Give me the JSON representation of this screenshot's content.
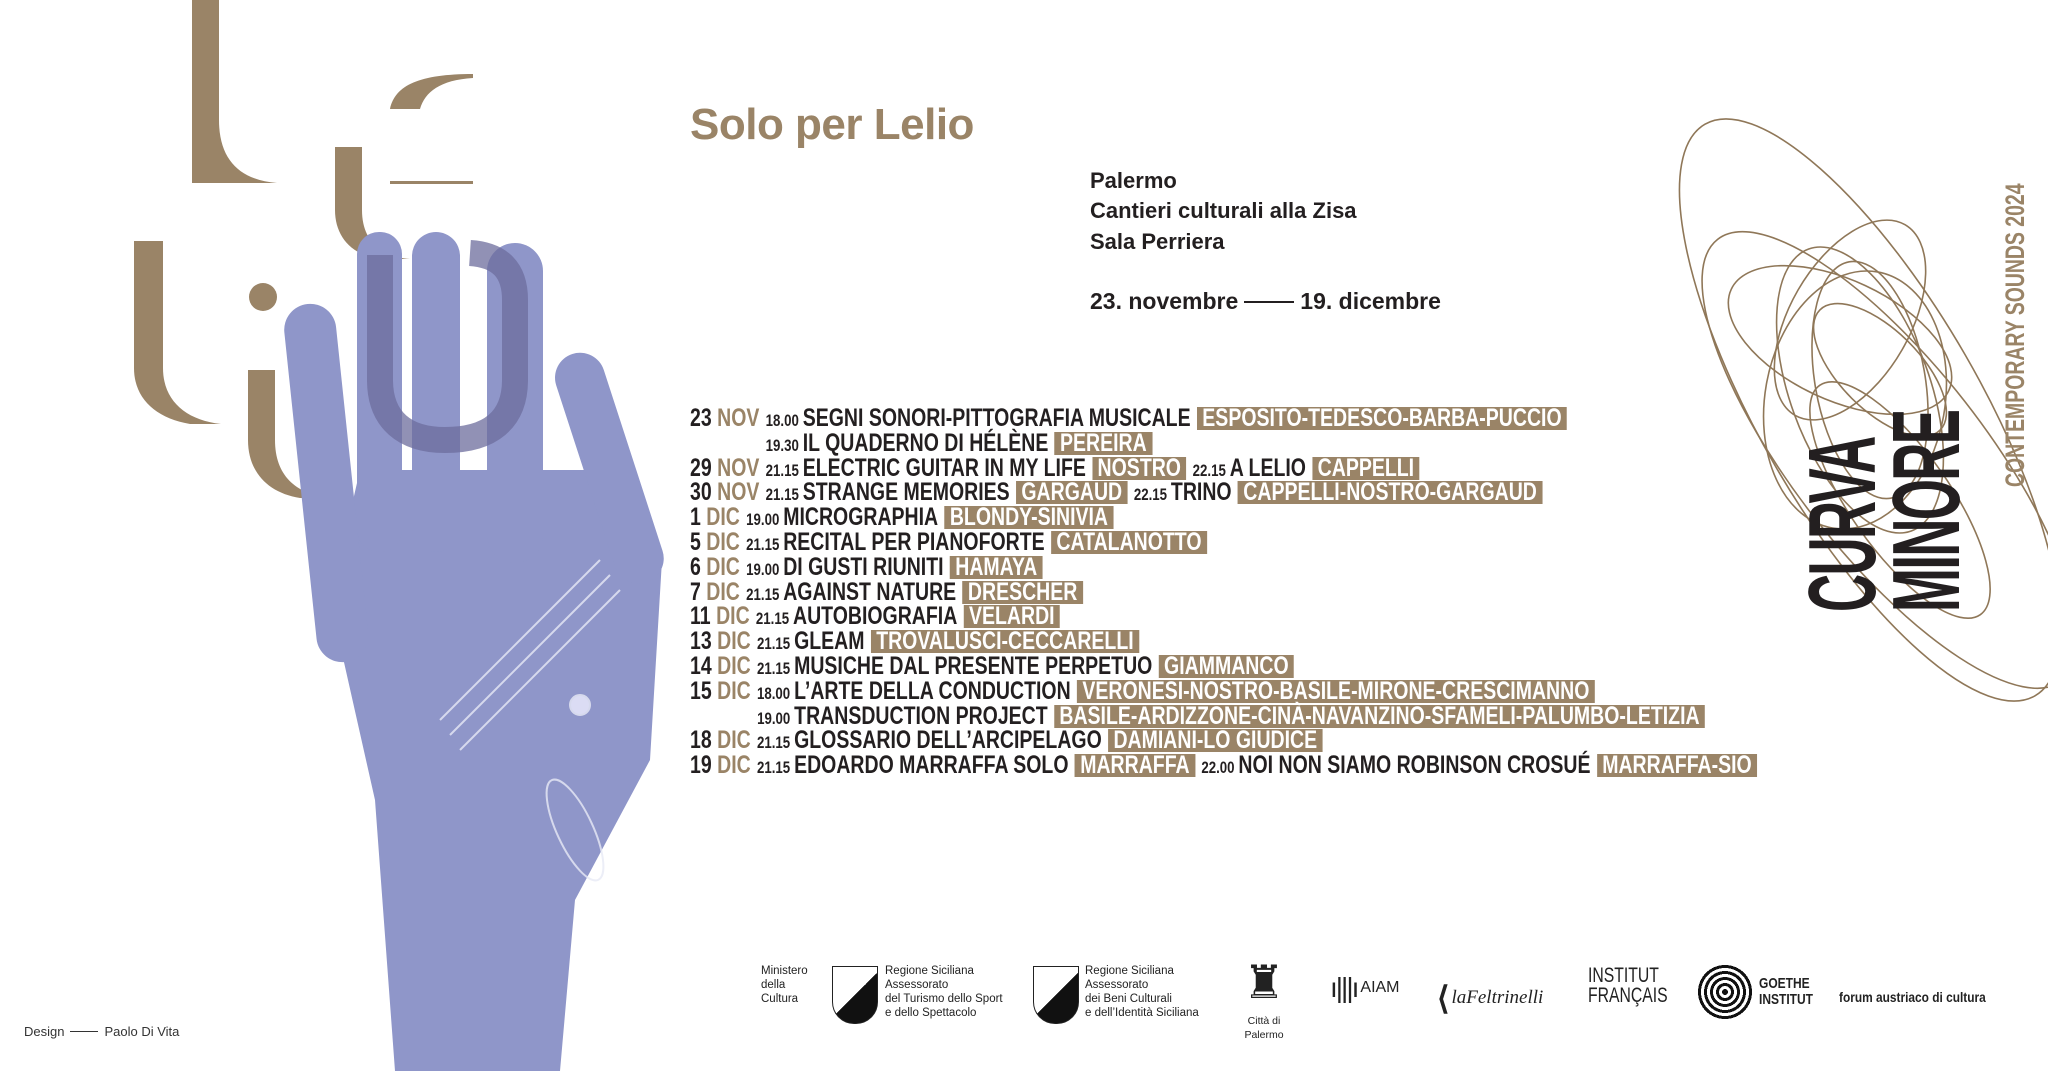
{
  "title": "Solo per Lelio",
  "venue": [
    "Palermo",
    "Cantieri culturali alla Zisa",
    "Sala Perriera"
  ],
  "dates": {
    "start": "23. novembre",
    "end": "19. dicembre"
  },
  "schedule": [
    {
      "day": "23",
      "month": "NOV",
      "events": [
        {
          "time": "18.00",
          "title": "SEGNI SONORI-PITTOGRAFIA MUSICALE",
          "performers": "ESPOSITO-TEDESCO-BARBA-PUCCIO"
        }
      ]
    },
    {
      "day": "",
      "month": "",
      "events": [
        {
          "time": "19.30",
          "title": "IL QUADERNO DI HÉLÈNE",
          "performers": "PEREIRA"
        }
      ]
    },
    {
      "day": "29",
      "month": "NOV",
      "events": [
        {
          "time": "21.15",
          "title": "ELECTRIC GUITAR IN MY LIFE",
          "performers": "NOSTRO"
        },
        {
          "time": "22.15",
          "title": "A LELIO",
          "performers": "CAPPELLI"
        }
      ]
    },
    {
      "day": "30",
      "month": "NOV",
      "events": [
        {
          "time": "21.15",
          "title": "STRANGE MEMORIES",
          "performers": "GARGAUD"
        },
        {
          "time": "22.15",
          "title": "TRINO",
          "performers": "CAPPELLI-NOSTRO-GARGAUD"
        }
      ]
    },
    {
      "day": "1",
      "month": "DIC",
      "events": [
        {
          "time": "19.00",
          "title": "MICROGRAPHIA",
          "performers": "BLONDY-SINIVIA"
        }
      ]
    },
    {
      "day": "5",
      "month": "DIC",
      "events": [
        {
          "time": "21.15",
          "title": "RECITAL PER PIANOFORTE",
          "performers": "CATALANOTTO"
        }
      ]
    },
    {
      "day": "6",
      "month": "DIC",
      "events": [
        {
          "time": "19.00",
          "title": "DI GUSTI RIUNITI",
          "performers": "HAMAYA"
        }
      ]
    },
    {
      "day": "7",
      "month": "DIC",
      "events": [
        {
          "time": "21.15",
          "title": "AGAINST NATURE",
          "performers": "DRESCHER"
        }
      ]
    },
    {
      "day": "11",
      "month": "DIC",
      "events": [
        {
          "time": "21.15",
          "title": "AUTOBIOGRAFIA",
          "performers": "VELARDI"
        }
      ]
    },
    {
      "day": "13",
      "month": "DIC",
      "events": [
        {
          "time": "21.15",
          "title": "GLEAM",
          "performers": "TROVALUSCI-CECCARELLI"
        }
      ]
    },
    {
      "day": "14",
      "month": "DIC",
      "events": [
        {
          "time": "21.15",
          "title": "MUSICHE DAL PRESENTE PERPETUO",
          "performers": "GIAMMANCO"
        }
      ]
    },
    {
      "day": "15",
      "month": "DIC",
      "events": [
        {
          "time": "18.00",
          "title": "L’ARTE DELLA CONDUCTION",
          "performers": "VERONESI-NOSTRO-BASILE-MIRONE-CRESCIMANNO"
        }
      ]
    },
    {
      "day": "",
      "month": "",
      "events": [
        {
          "time": "19.00",
          "title": "TRANSDUCTION PROJECT",
          "performers": "BASILE-ARDIZZONE-CINÀ-NAVANZINO-SFAMELI-PALUMBO-LETIZIA"
        }
      ]
    },
    {
      "day": "18",
      "month": "DIC",
      "events": [
        {
          "time": "21.15",
          "title": "GLOSSARIO DELL’ARCIPELAGO",
          "performers": "DAMIANI-LO GIUDICE"
        }
      ]
    },
    {
      "day": "19",
      "month": "DIC",
      "events": [
        {
          "time": "21.15",
          "title": "EDOARDO MARRAFFA SOLO",
          "performers": "MARRAFFA"
        },
        {
          "time": "22.00",
          "title": "NOI NON SIAMO ROBINSON CROSUÉ",
          "performers": "MARRAFFA-SIO"
        }
      ]
    }
  ],
  "festival": {
    "line1": "CURVA",
    "line2": "MINORE",
    "subtitle": "CONTEMPORARY SOUNDS 2024"
  },
  "credit": {
    "label": "Design",
    "name": "Paolo Di Vita"
  },
  "sponsors": {
    "ministero": [
      "Ministero",
      "della",
      "Cultura"
    ],
    "regione1": [
      "Regione Siciliana",
      "Assessorato",
      "del Turismo dello Sport",
      "e dello Spettacolo"
    ],
    "regione2": [
      "Regione Siciliana",
      "Assessorato",
      "dei Beni Culturali",
      "e dell’Identità Siciliana"
    ],
    "palermo": "Città di Palermo",
    "aiam": "AIAM",
    "feltrinelli": "laFeltrinelli",
    "institut": [
      "INSTITUT",
      "FRANÇAIS"
    ],
    "goethe": [
      "GOETHE",
      "INSTITUT"
    ],
    "forum": "forum austriaco di cultura"
  },
  "colors": {
    "accent": "#9a8467",
    "hand": "#8f96c9",
    "text": "#231f20"
  }
}
